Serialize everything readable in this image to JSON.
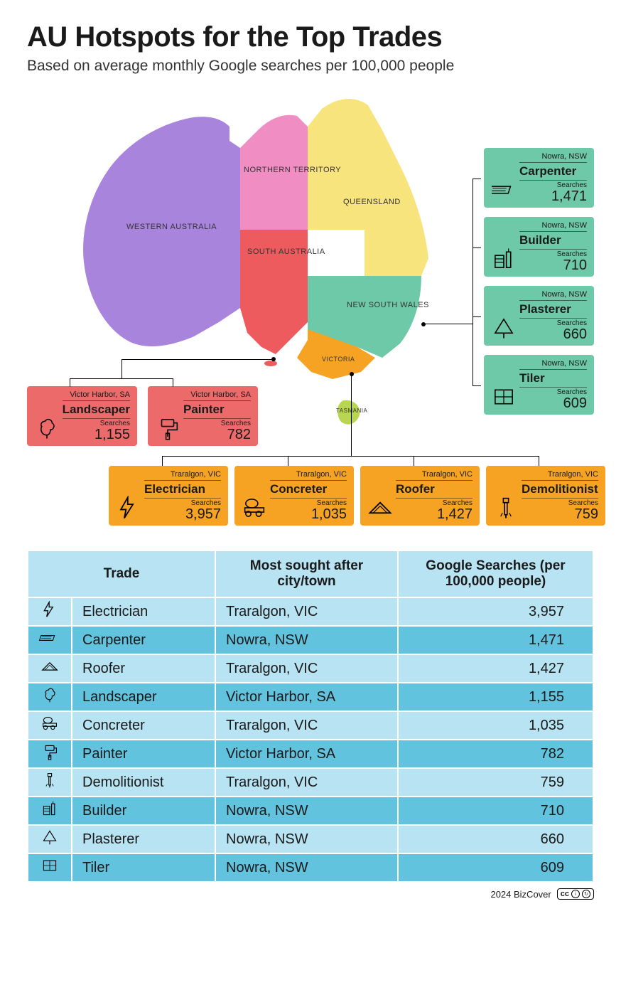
{
  "title": "AU Hotspots for the Top Trades",
  "subtitle": "Based on average monthly Google searches per 100,000 people",
  "colors": {
    "wa": "#a984dd",
    "nt": "#f08ec4",
    "sa": "#ee5b5e",
    "qld": "#f8e47c",
    "nsw": "#6dc9a8",
    "vic": "#f6a323",
    "tas": "#b8d64f",
    "card_green": "#6dc9a8",
    "card_red": "#ed6a6a",
    "card_orange": "#f6a323",
    "table_light": "#b7e3f2",
    "table_dark": "#62c3df"
  },
  "states": {
    "wa": "WESTERN AUSTRALIA",
    "nt": "NORTHERN TERRITORY",
    "sa": "SOUTH AUSTRALIA",
    "qld": "QUEENSLAND",
    "nsw": "NEW SOUTH WALES",
    "vic": "VICTORIA",
    "tas": "TASMANIA"
  },
  "searches_label": "Searches",
  "cards": {
    "nsw": [
      {
        "location": "Nowra, NSW",
        "trade": "Carpenter",
        "value": "1,471",
        "icon": "carpenter"
      },
      {
        "location": "Nowra, NSW",
        "trade": "Builder",
        "value": "710",
        "icon": "builder"
      },
      {
        "location": "Nowra, NSW",
        "trade": "Plasterer",
        "value": "660",
        "icon": "plasterer"
      },
      {
        "location": "Nowra, NSW",
        "trade": "Tiler",
        "value": "609",
        "icon": "tiler"
      }
    ],
    "sa": [
      {
        "location": "Victor Harbor, SA",
        "trade": "Landscaper",
        "value": "1,155",
        "icon": "landscaper"
      },
      {
        "location": "Victor Harbor, SA",
        "trade": "Painter",
        "value": "782",
        "icon": "painter"
      }
    ],
    "vic": [
      {
        "location": "Traralgon, VIC",
        "trade": "Electrician",
        "value": "3,957",
        "icon": "electrician"
      },
      {
        "location": "Traralgon, VIC",
        "trade": "Concreter",
        "value": "1,035",
        "icon": "concreter"
      },
      {
        "location": "Traralgon, VIC",
        "trade": "Roofer",
        "value": "1,427",
        "icon": "roofer"
      },
      {
        "location": "Traralgon, VIC",
        "trade": "Demolitionist",
        "value": "759",
        "icon": "demolitionist"
      }
    ]
  },
  "table": {
    "headers": {
      "trade": "Trade",
      "city": "Most sought after city/town",
      "searches": "Google Searches (per 100,000 people)"
    },
    "rows": [
      {
        "icon": "electrician",
        "trade": "Electrician",
        "city": "Traralgon, VIC",
        "value": "3,957"
      },
      {
        "icon": "carpenter",
        "trade": "Carpenter",
        "city": "Nowra, NSW",
        "value": "1,471"
      },
      {
        "icon": "roofer",
        "trade": "Roofer",
        "city": "Traralgon, VIC",
        "value": "1,427"
      },
      {
        "icon": "landscaper",
        "trade": "Landscaper",
        "city": "Victor Harbor, SA",
        "value": "1,155"
      },
      {
        "icon": "concreter",
        "trade": "Concreter",
        "city": "Traralgon, VIC",
        "value": "1,035"
      },
      {
        "icon": "painter",
        "trade": "Painter",
        "city": "Victor Harbor, SA",
        "value": "782"
      },
      {
        "icon": "demolitionist",
        "trade": "Demolitionist",
        "city": "Traralgon, VIC",
        "value": "759"
      },
      {
        "icon": "builder",
        "trade": "Builder",
        "city": "Nowra, NSW",
        "value": "710"
      },
      {
        "icon": "plasterer",
        "trade": "Plasterer",
        "city": "Nowra, NSW",
        "value": "660"
      },
      {
        "icon": "tiler",
        "trade": "Tiler",
        "city": "Nowra, NSW",
        "value": "609"
      }
    ]
  },
  "footer": {
    "credit": "2024 BizCover",
    "cc": "cc",
    "by": "BY",
    "sa": "SA"
  }
}
